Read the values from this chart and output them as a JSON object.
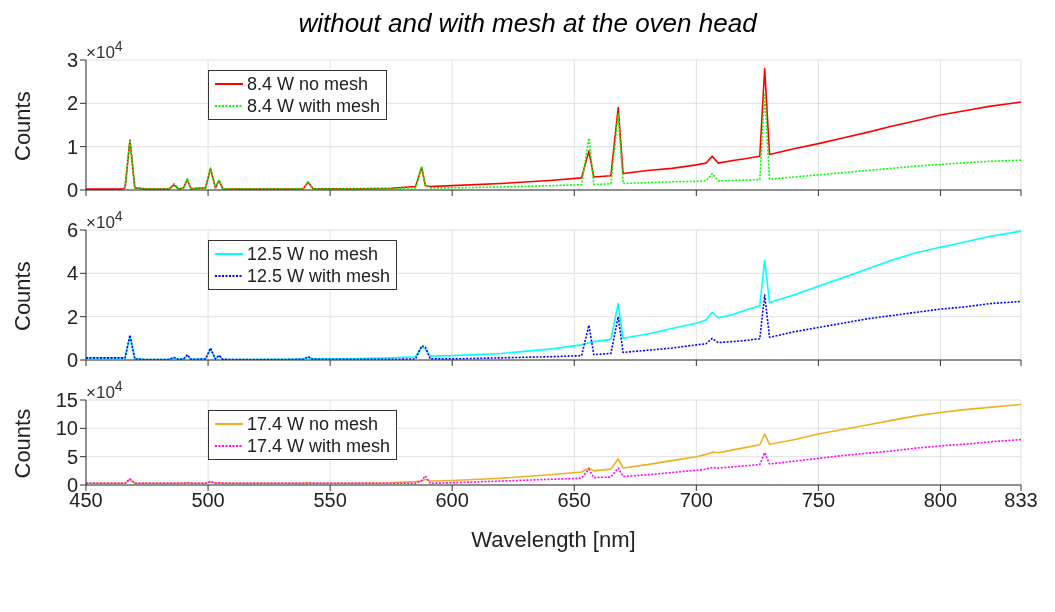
{
  "chart_data": [
    {
      "type": "line",
      "title": "without and with mesh at the oven head",
      "ylabel": "Counts",
      "annotations": [
        "×10$^{4}$"
      ],
      "xlim": [
        450,
        833
      ],
      "xticks": [
        450,
        500,
        550,
        600,
        650,
        700,
        750,
        800,
        833
      ],
      "ylim": [
        0,
        3
      ],
      "yticks": [
        0,
        1,
        2,
        3
      ],
      "tick_labels": "y",
      "grid": true,
      "legend": "top left",
      "x": [
        450,
        455,
        460,
        465,
        466,
        468,
        470,
        475,
        484,
        486,
        488,
        490,
        491.5,
        493,
        499,
        501,
        503,
        504.5,
        506,
        515,
        530,
        539,
        541,
        543,
        560,
        575,
        585,
        587.5,
        589,
        591,
        600,
        620,
        640,
        653,
        656,
        658,
        665,
        668,
        670,
        680,
        690,
        700,
        704,
        706.5,
        709,
        715,
        720,
        726,
        728,
        730,
        740,
        750,
        760,
        770,
        780,
        790,
        800,
        810,
        820,
        833
      ],
      "series": [
        {
          "name": "8.4 W no mesh",
          "color": "#ff0000",
          "line_style": "solid",
          "values": [
            0.02,
            0.02,
            0.02,
            0.02,
            0.05,
            1.15,
            0.05,
            0.02,
            0.02,
            0.12,
            0.02,
            0.05,
            0.25,
            0.03,
            0.05,
            0.5,
            0.05,
            0.22,
            0.03,
            0.02,
            0.02,
            0.03,
            0.18,
            0.03,
            0.03,
            0.04,
            0.08,
            0.52,
            0.1,
            0.08,
            0.1,
            0.15,
            0.22,
            0.28,
            0.9,
            0.3,
            0.33,
            1.9,
            0.38,
            0.45,
            0.5,
            0.58,
            0.62,
            0.78,
            0.62,
            0.68,
            0.72,
            0.78,
            2.8,
            0.82,
            0.95,
            1.07,
            1.2,
            1.33,
            1.47,
            1.6,
            1.73,
            1.83,
            1.93,
            2.03
          ]
        },
        {
          "name": "8.4 W with mesh",
          "color": "#00ff00",
          "line_style": "dotted",
          "values": [
            null,
            null,
            null,
            null,
            0.05,
            1.15,
            0.05,
            0.02,
            0.02,
            0.15,
            0.02,
            0.05,
            0.25,
            0.03,
            0.05,
            0.5,
            0.05,
            0.22,
            0.03,
            0.02,
            0.02,
            0.03,
            0.2,
            0.03,
            0.03,
            0.03,
            0.05,
            0.55,
            0.1,
            0.05,
            0.05,
            0.07,
            0.1,
            0.12,
            1.2,
            0.13,
            0.14,
            1.75,
            0.15,
            0.17,
            0.19,
            0.2,
            0.21,
            0.38,
            0.21,
            0.22,
            0.23,
            0.24,
            2.2,
            0.25,
            0.3,
            0.35,
            0.4,
            0.45,
            0.5,
            0.55,
            0.59,
            0.63,
            0.66,
            0.69
          ]
        }
      ]
    },
    {
      "type": "line",
      "ylabel": "Counts",
      "annotations": [
        "×10$^{4}$"
      ],
      "xlim": [
        450,
        833
      ],
      "xticks": [
        450,
        500,
        550,
        600,
        650,
        700,
        750,
        800,
        833
      ],
      "ylim": [
        0,
        6
      ],
      "yticks": [
        0,
        2,
        4,
        6
      ],
      "tick_labels": "y",
      "grid": true,
      "legend": "top left",
      "x": [
        450,
        455,
        460,
        465,
        466,
        468,
        470,
        475,
        484,
        486,
        488,
        490,
        491.5,
        493,
        499,
        501,
        503,
        504.5,
        506,
        515,
        530,
        539,
        541,
        543,
        560,
        575,
        585,
        587.5,
        589,
        591,
        600,
        620,
        640,
        653,
        656,
        658,
        665,
        668,
        670,
        680,
        690,
        700,
        704,
        706.5,
        709,
        715,
        720,
        726,
        728,
        730,
        740,
        750,
        760,
        770,
        780,
        790,
        800,
        810,
        820,
        833
      ],
      "series": [
        {
          "name": "12.5 W no mesh",
          "color": "#00ffff",
          "line_style": "solid",
          "values": [
            0.1,
            0.1,
            0.1,
            0.1,
            0.1,
            1.1,
            0.05,
            0.02,
            0.02,
            0.1,
            0.02,
            0.05,
            0.2,
            0.03,
            0.05,
            0.5,
            0.05,
            0.2,
            0.03,
            0.02,
            0.03,
            0.04,
            0.12,
            0.05,
            0.06,
            0.1,
            0.15,
            0.6,
            0.5,
            0.18,
            0.2,
            0.3,
            0.5,
            0.7,
            0.8,
            0.85,
            0.95,
            2.6,
            1.0,
            1.2,
            1.45,
            1.7,
            1.85,
            2.2,
            1.95,
            2.1,
            2.3,
            2.5,
            4.6,
            2.65,
            3.0,
            3.4,
            3.8,
            4.2,
            4.6,
            4.95,
            5.2,
            5.45,
            5.7,
            5.95
          ]
        },
        {
          "name": "12.5 W with mesh",
          "color": "#0000ff",
          "line_style": "dotted",
          "values": [
            0.1,
            0.1,
            0.1,
            0.1,
            0.1,
            1.15,
            0.05,
            0.02,
            0.02,
            0.12,
            0.02,
            0.05,
            0.25,
            0.03,
            0.05,
            0.55,
            0.05,
            0.22,
            0.03,
            0.02,
            0.02,
            0.03,
            0.15,
            0.03,
            0.03,
            0.03,
            0.05,
            0.65,
            0.6,
            0.05,
            0.05,
            0.1,
            0.15,
            0.2,
            1.6,
            0.25,
            0.3,
            2.0,
            0.35,
            0.45,
            0.55,
            0.7,
            0.75,
            1.0,
            0.8,
            0.85,
            0.9,
            0.98,
            3.0,
            1.05,
            1.3,
            1.5,
            1.7,
            1.9,
            2.05,
            2.2,
            2.35,
            2.45,
            2.6,
            2.7
          ]
        }
      ]
    },
    {
      "type": "line",
      "xlabel": "Wavelength [nm]",
      "ylabel": "Counts",
      "annotations": [
        "×10$^{4}$"
      ],
      "xlim": [
        450,
        833
      ],
      "xticks": [
        450,
        500,
        550,
        600,
        650,
        700,
        750,
        800,
        833
      ],
      "ylim": [
        0,
        15
      ],
      "yticks": [
        0,
        5,
        10,
        15
      ],
      "grid": true,
      "legend": "top left",
      "x": [
        450,
        455,
        460,
        465,
        466,
        468,
        470,
        475,
        484,
        486,
        488,
        490,
        491.5,
        493,
        499,
        501,
        503,
        504.5,
        506,
        515,
        530,
        539,
        541,
        543,
        560,
        575,
        585,
        587.5,
        589,
        591,
        600,
        620,
        640,
        653,
        656,
        658,
        665,
        668,
        670,
        680,
        690,
        700,
        704,
        706.5,
        709,
        715,
        720,
        726,
        728,
        730,
        740,
        750,
        760,
        770,
        780,
        790,
        800,
        810,
        820,
        833
      ],
      "series": [
        {
          "name": "17.4 W no mesh",
          "color": "#edb120",
          "line_style": "solid",
          "values": [
            0.3,
            0.3,
            0.3,
            0.3,
            0.3,
            1.0,
            0.3,
            0.3,
            0.3,
            0.3,
            0.3,
            0.3,
            0.4,
            0.3,
            0.3,
            0.6,
            0.3,
            0.4,
            0.3,
            0.3,
            0.3,
            0.3,
            0.4,
            0.3,
            0.3,
            0.4,
            0.6,
            0.7,
            1.0,
            0.7,
            0.8,
            1.2,
            1.8,
            2.3,
            3.0,
            2.5,
            2.8,
            4.6,
            3.0,
            3.6,
            4.3,
            5.0,
            5.4,
            5.8,
            5.7,
            6.2,
            6.6,
            7.1,
            9.0,
            7.2,
            8.0,
            9.0,
            9.8,
            10.6,
            11.4,
            12.2,
            12.8,
            13.3,
            13.7,
            14.2
          ]
        },
        {
          "name": "17.4 W with mesh",
          "color": "#ff00ff",
          "line_style": "dotted",
          "values": [
            0.3,
            0.3,
            0.3,
            0.3,
            0.3,
            1.1,
            0.3,
            0.3,
            0.3,
            0.3,
            0.3,
            0.3,
            0.4,
            0.3,
            0.3,
            0.6,
            0.3,
            0.4,
            0.3,
            0.3,
            0.3,
            0.3,
            0.3,
            0.3,
            0.3,
            0.3,
            0.3,
            0.8,
            1.6,
            0.3,
            0.4,
            0.7,
            1.0,
            1.2,
            2.8,
            1.3,
            1.4,
            3.0,
            1.5,
            1.8,
            2.2,
            2.6,
            2.8,
            3.1,
            3.0,
            3.2,
            3.4,
            3.6,
            5.7,
            3.7,
            4.2,
            4.7,
            5.2,
            5.6,
            6.0,
            6.5,
            6.9,
            7.2,
            7.6,
            8.0
          ]
        }
      ]
    }
  ]
}
